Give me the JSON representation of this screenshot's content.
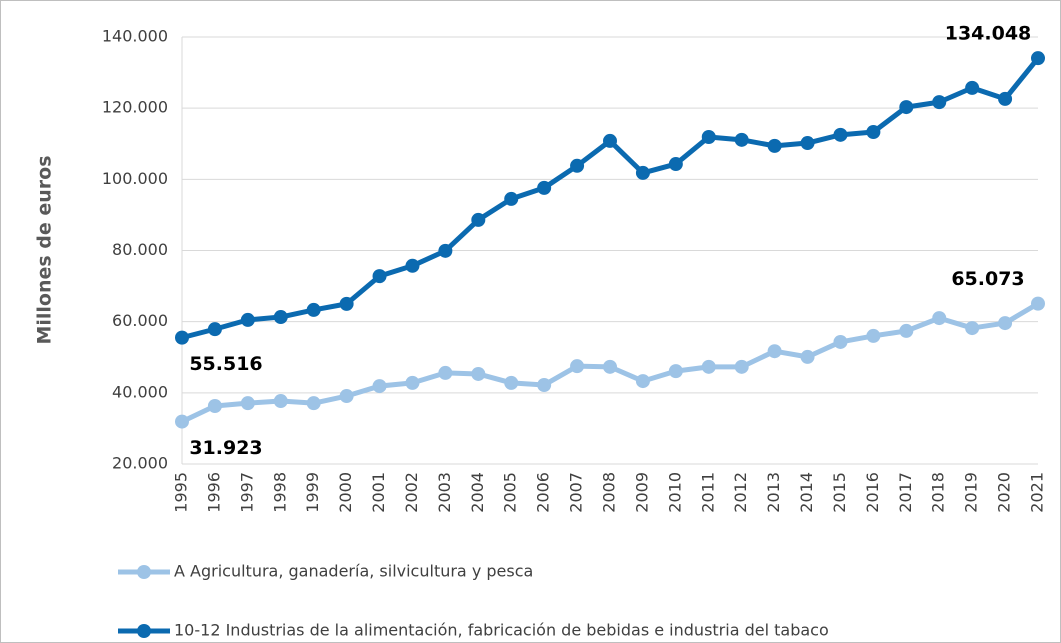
{
  "chart_data": {
    "type": "line",
    "y_label": "Millones de euros",
    "categories": [
      "1995",
      "1996",
      "1997",
      "1998",
      "1999",
      "2000",
      "2001",
      "2002",
      "2003",
      "2004",
      "2005",
      "2006",
      "2007",
      "2008",
      "2009",
      "2010",
      "2011",
      "2012",
      "2013",
      "2014",
      "2015",
      "2016",
      "2017",
      "2018",
      "2019",
      "2020",
      "2021"
    ],
    "series": [
      {
        "name": "A Agricultura, ganadería, silvicultura y pesca",
        "color": "#9dc3e6",
        "values": [
          31923,
          36300,
          37100,
          37700,
          37100,
          39100,
          41900,
          42800,
          45600,
          45300,
          42800,
          42200,
          47500,
          47300,
          43300,
          46100,
          47300,
          47300,
          51700,
          50100,
          54300,
          56000,
          57400,
          61000,
          58200,
          59600,
          65073
        ],
        "value_labels": [
          "31.923",
          null,
          null,
          null,
          null,
          null,
          null,
          null,
          null,
          null,
          null,
          null,
          null,
          null,
          null,
          null,
          null,
          null,
          null,
          null,
          null,
          null,
          null,
          null,
          null,
          null,
          "65.073"
        ]
      },
      {
        "name": "10-12 Industrias de la alimentación, fabricación de bebidas e industria del tabaco",
        "color": "#0b6ab0",
        "values": [
          55516,
          57900,
          60500,
          61300,
          63300,
          65000,
          72800,
          75700,
          79900,
          88600,
          94500,
          97600,
          103800,
          110800,
          101800,
          104300,
          111900,
          111100,
          109400,
          110200,
          112500,
          113300,
          120300,
          121700,
          125700,
          122600,
          134048
        ],
        "value_labels": [
          "55.516",
          null,
          null,
          null,
          null,
          null,
          null,
          null,
          null,
          null,
          null,
          null,
          null,
          null,
          null,
          null,
          null,
          null,
          null,
          null,
          null,
          null,
          null,
          null,
          null,
          null,
          "134.048"
        ]
      }
    ],
    "ylim": [
      20000,
      140000
    ],
    "yticks": [
      {
        "value": 20000,
        "label": "20.000"
      },
      {
        "value": 40000,
        "label": "40.000"
      },
      {
        "value": 60000,
        "label": "60.000"
      },
      {
        "value": 80000,
        "label": "80.000"
      },
      {
        "value": 100000,
        "label": "100.000"
      },
      {
        "value": 120000,
        "label": "120.000"
      },
      {
        "value": 140000,
        "label": "140.000"
      }
    ],
    "grid": true,
    "legend": "bottom"
  }
}
